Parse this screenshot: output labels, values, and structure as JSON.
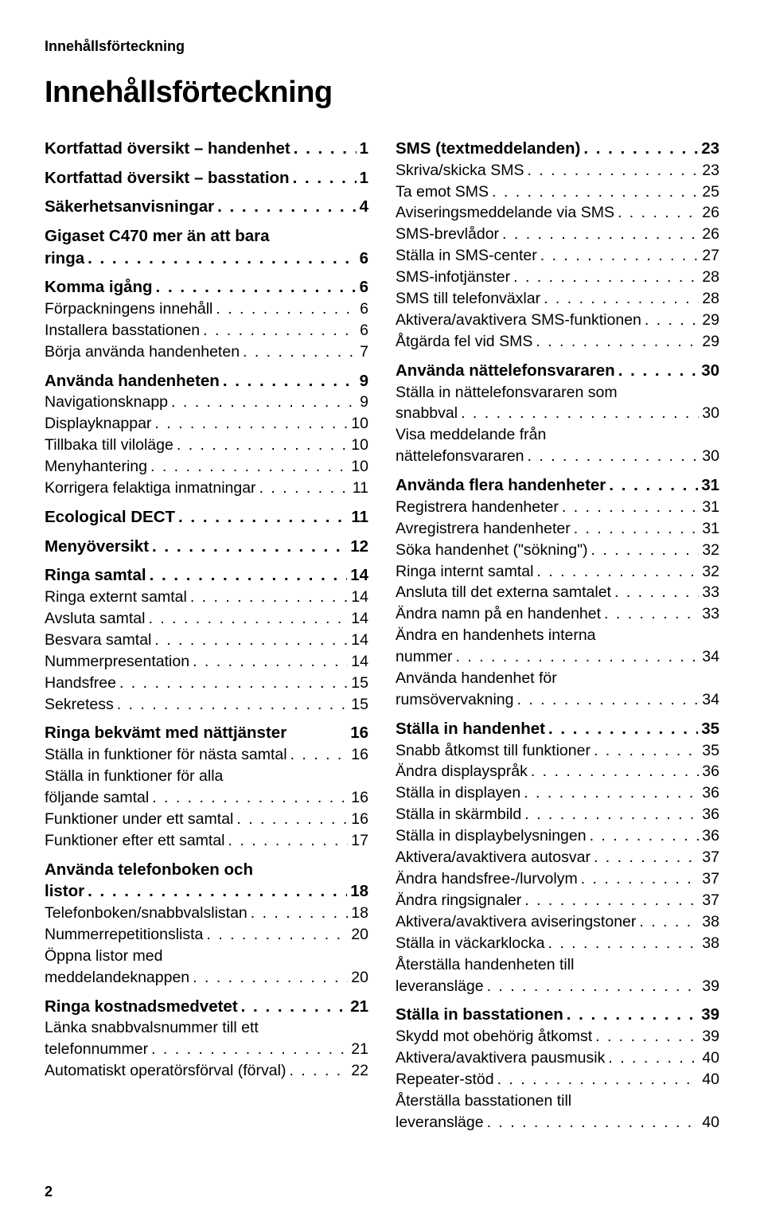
{
  "running_head": "Innehållsförteckning",
  "title": "Innehållsförteckning",
  "page_number": "2",
  "leader": ". . . . . . . . . . . . . . . . . . . . . . . . . . . . . . . . . . . . . . . . . . . . . . . . . .",
  "left": [
    {
      "t": "section",
      "label": "Kortfattad översikt – handenhet",
      "page": "1",
      "leader": true
    },
    {
      "t": "section",
      "label": "Kortfattad översikt – basstation",
      "page": "1",
      "leader": true
    },
    {
      "t": "section",
      "label": "Säkerhetsanvisningar",
      "page": "4",
      "leader": true
    },
    {
      "t": "section_wrap",
      "lines": [
        "Gigaset C470 mer än att bara"
      ],
      "tail_label": "ringa",
      "page": "6",
      "leader": true
    },
    {
      "t": "section",
      "label": "Komma igång",
      "page": "6",
      "leader": true
    },
    {
      "t": "item",
      "label": "Förpackningens innehåll",
      "page": "6",
      "leader": true
    },
    {
      "t": "item",
      "label": "Installera basstationen",
      "page": "6",
      "leader": true
    },
    {
      "t": "item",
      "label": "Börja använda handenheten",
      "page": "7",
      "leader": true
    },
    {
      "t": "section",
      "label": "Använda handenheten",
      "page": "9",
      "leader": true
    },
    {
      "t": "item",
      "label": "Navigationsknapp",
      "page": "9",
      "leader": true
    },
    {
      "t": "item",
      "label": "Displayknappar",
      "page": "10",
      "leader": true
    },
    {
      "t": "item",
      "label": "Tillbaka till viloläge",
      "page": "10",
      "leader": true
    },
    {
      "t": "item",
      "label": "Menyhantering",
      "page": "10",
      "leader": true
    },
    {
      "t": "item",
      "label": "Korrigera felaktiga inmatningar",
      "page": "11",
      "leader": true
    },
    {
      "t": "section",
      "label": "Ecological DECT",
      "page": "11",
      "leader": true
    },
    {
      "t": "section",
      "label": "Menyöversikt",
      "page": "12",
      "leader": true
    },
    {
      "t": "section",
      "label": "Ringa samtal",
      "page": "14",
      "leader": true
    },
    {
      "t": "item",
      "label": "Ringa externt samtal",
      "page": "14",
      "leader": true
    },
    {
      "t": "item",
      "label": "Avsluta samtal",
      "page": "14",
      "leader": true
    },
    {
      "t": "item",
      "label": "Besvara samtal",
      "page": "14",
      "leader": true
    },
    {
      "t": "item",
      "label": "Nummerpresentation",
      "page": "14",
      "leader": true
    },
    {
      "t": "item",
      "label": "Handsfree",
      "page": "15",
      "leader": true
    },
    {
      "t": "item",
      "label": "Sekretess",
      "page": "15",
      "leader": true
    },
    {
      "t": "section",
      "label": "Ringa bekvämt med nättjänster",
      "page": "16",
      "leader": false
    },
    {
      "t": "item",
      "label": "Ställa in funktioner för nästa samtal",
      "page": "16",
      "leader": true
    },
    {
      "t": "item_wrap",
      "lines": [
        "Ställa in funktioner för alla"
      ],
      "tail_label": "följande samtal",
      "page": "16",
      "leader": true
    },
    {
      "t": "item",
      "label": "Funktioner under ett samtal",
      "page": "16",
      "leader": true
    },
    {
      "t": "item",
      "label": "Funktioner efter ett samtal",
      "page": "17",
      "leader": true
    },
    {
      "t": "section_wrap",
      "lines": [
        "Använda telefonboken och"
      ],
      "tail_label": "listor",
      "page": "18",
      "leader": true
    },
    {
      "t": "item",
      "label": "Telefonboken/snabbvalslistan",
      "page": "18",
      "leader": true
    },
    {
      "t": "item",
      "label": "Nummerrepetitionslista",
      "page": "20",
      "leader": true
    },
    {
      "t": "item_wrap",
      "lines": [
        "Öppna listor med"
      ],
      "tail_label": "meddelandeknappen",
      "page": "20",
      "leader": true
    },
    {
      "t": "section",
      "label": "Ringa kostnadsmedvetet",
      "page": "21",
      "leader": true
    },
    {
      "t": "item_wrap",
      "lines": [
        "Länka snabbvalsnummer till ett"
      ],
      "tail_label": "telefonnummer",
      "page": "21",
      "leader": true
    },
    {
      "t": "item",
      "label": "Automatiskt operatörsförval (förval)",
      "page": "22",
      "leader": true
    }
  ],
  "right": [
    {
      "t": "section",
      "label": "SMS (textmeddelanden)",
      "page": "23",
      "leader": true
    },
    {
      "t": "item",
      "label": "Skriva/skicka SMS",
      "page": "23",
      "leader": true
    },
    {
      "t": "item",
      "label": "Ta emot SMS",
      "page": "25",
      "leader": true
    },
    {
      "t": "item",
      "label": "Aviseringsmeddelande via SMS",
      "page": "26",
      "leader": true
    },
    {
      "t": "item",
      "label": "SMS-brevlådor",
      "page": "26",
      "leader": true
    },
    {
      "t": "item",
      "label": "Ställa in SMS-center",
      "page": "27",
      "leader": true
    },
    {
      "t": "item",
      "label": "SMS-infotjänster",
      "page": "28",
      "leader": true
    },
    {
      "t": "item",
      "label": "SMS till telefonväxlar",
      "page": "28",
      "leader": true
    },
    {
      "t": "item",
      "label": "Aktivera/avaktivera SMS-funktionen",
      "page": "29",
      "leader": true
    },
    {
      "t": "item",
      "label": "Åtgärda fel vid SMS",
      "page": "29",
      "leader": true
    },
    {
      "t": "section",
      "label": "Använda nättelefonsvararen",
      "page": "30",
      "leader": true
    },
    {
      "t": "item_wrap",
      "lines": [
        "Ställa in nättelefonsvararen som"
      ],
      "tail_label": "snabbval",
      "page": "30",
      "leader": true
    },
    {
      "t": "item_wrap",
      "lines": [
        "Visa meddelande från"
      ],
      "tail_label": "nättelefonsvararen",
      "page": "30",
      "leader": true
    },
    {
      "t": "section",
      "label": "Använda flera handenheter",
      "page": "31",
      "leader": true
    },
    {
      "t": "item",
      "label": "Registrera handenheter",
      "page": "31",
      "leader": true
    },
    {
      "t": "item",
      "label": "Avregistrera handenheter",
      "page": "31",
      "leader": true
    },
    {
      "t": "item",
      "label": "Söka handenhet (\"sökning\")",
      "page": "32",
      "leader": true
    },
    {
      "t": "item",
      "label": "Ringa internt samtal",
      "page": "32",
      "leader": true
    },
    {
      "t": "item",
      "label": "Ansluta till det externa samtalet",
      "page": "33",
      "leader": true
    },
    {
      "t": "item",
      "label": "Ändra namn på en handenhet",
      "page": "33",
      "leader": true
    },
    {
      "t": "item_wrap",
      "lines": [
        "Ändra en handenhets interna"
      ],
      "tail_label": "nummer",
      "page": "34",
      "leader": true
    },
    {
      "t": "item_wrap",
      "lines": [
        "Använda handenhet för"
      ],
      "tail_label": "rumsövervakning",
      "page": "34",
      "leader": true
    },
    {
      "t": "section",
      "label": "Ställa in handenhet",
      "page": "35",
      "leader": true
    },
    {
      "t": "item",
      "label": "Snabb åtkomst till funktioner",
      "page": "35",
      "leader": true
    },
    {
      "t": "item",
      "label": "Ändra displayspråk",
      "page": "36",
      "leader": true
    },
    {
      "t": "item",
      "label": "Ställa in displayen",
      "page": "36",
      "leader": true
    },
    {
      "t": "item",
      "label": "Ställa in skärmbild",
      "page": "36",
      "leader": true
    },
    {
      "t": "item",
      "label": "Ställa in displaybelysningen",
      "page": "36",
      "leader": true
    },
    {
      "t": "item",
      "label": "Aktivera/avaktivera autosvar",
      "page": "37",
      "leader": true
    },
    {
      "t": "item",
      "label": "Ändra handsfree-/lurvolym",
      "page": "37",
      "leader": true
    },
    {
      "t": "item",
      "label": "Ändra ringsignaler",
      "page": "37",
      "leader": true
    },
    {
      "t": "item",
      "label": "Aktivera/avaktivera aviseringstoner",
      "page": "38",
      "leader": true
    },
    {
      "t": "item",
      "label": "Ställa in väckarklocka",
      "page": "38",
      "leader": true
    },
    {
      "t": "item_wrap",
      "lines": [
        "Återställa handenheten till"
      ],
      "tail_label": "leveransläge",
      "page": "39",
      "leader": true
    },
    {
      "t": "section",
      "label": "Ställa in basstationen",
      "page": "39",
      "leader": true
    },
    {
      "t": "item",
      "label": "Skydd mot obehörig åtkomst",
      "page": "39",
      "leader": true
    },
    {
      "t": "item",
      "label": "Aktivera/avaktivera pausmusik",
      "page": "40",
      "leader": true
    },
    {
      "t": "item",
      "label": "Repeater-stöd",
      "page": "40",
      "leader": true
    },
    {
      "t": "item_wrap",
      "lines": [
        "Återställa basstationen till"
      ],
      "tail_label": "leveransläge",
      "page": "40",
      "leader": true
    }
  ]
}
